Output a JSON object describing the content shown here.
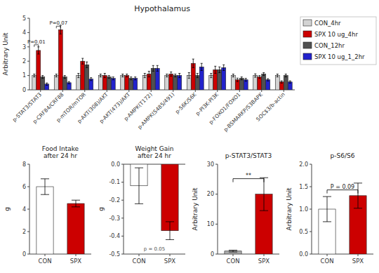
{
  "chart_data": [
    {
      "type": "bar",
      "title": "Hypothalamus",
      "ylabel": "Arbitrary Unit",
      "categories": [
        "p-STAT3/STAT3",
        "p-CRF84/CRF88",
        "p-mTOR/mTOR",
        "p-AKT(308)/AKT",
        "p-AKT(473)/AKT",
        "p-AMPK(T172)",
        "p-AMPK(S485/491)",
        "p-S6K/S6K",
        "p-PI3K-PI3K",
        "p-FOXO1/FOXO1",
        "p-BSMARKP/S3BAPK",
        "SOC$3/b-actin"
      ],
      "series": [
        {
          "name": "CON_4hr",
          "color": "#d3d3d3",
          "values": [
            1.0,
            1.0,
            1.0,
            1.0,
            1.0,
            1.0,
            1.0,
            1.0,
            1.0,
            1.0,
            1.0,
            1.0
          ],
          "errors": [
            0.1,
            0.1,
            0.15,
            0.1,
            0.1,
            0.15,
            0.1,
            0.2,
            0.15,
            0.1,
            0.12,
            0.1
          ]
        },
        {
          "name": "SPX 10 ug_4hr",
          "color": "#cc0000",
          "values": [
            2.75,
            4.2,
            2.0,
            1.0,
            1.0,
            1.1,
            1.1,
            1.85,
            1.4,
            0.7,
            0.9,
            0.55
          ],
          "errors": [
            0.25,
            0.3,
            0.2,
            0.15,
            0.1,
            0.2,
            0.15,
            0.3,
            0.25,
            0.12,
            0.1,
            0.08
          ]
        },
        {
          "name": "CON_12hr",
          "color": "#505050",
          "values": [
            0.9,
            0.9,
            1.75,
            0.9,
            0.8,
            1.5,
            1.0,
            1.0,
            1.4,
            0.8,
            1.1,
            1.0
          ],
          "errors": [
            0.1,
            0.1,
            0.2,
            0.1,
            0.1,
            0.2,
            0.1,
            0.15,
            0.2,
            0.1,
            0.1,
            0.1
          ]
        },
        {
          "name": "SPX 10 ug_1_2hr",
          "color": "#2222cc",
          "values": [
            0.4,
            0.5,
            0.75,
            0.8,
            0.8,
            1.5,
            1.0,
            1.6,
            1.55,
            0.7,
            0.7,
            0.55
          ],
          "errors": [
            0.08,
            0.08,
            0.1,
            0.1,
            0.1,
            0.2,
            0.15,
            0.25,
            0.2,
            0.1,
            0.08,
            0.08
          ]
        }
      ],
      "ylim": [
        0,
        5
      ],
      "yticks": [
        0,
        1,
        2,
        3,
        4,
        5
      ],
      "legend": "right",
      "annotations": [
        {
          "text": "P=0.01",
          "category": "p-STAT3/STAT3",
          "between": [
            "CON_4hr",
            "SPX 10 ug_4hr"
          ],
          "y": 3.0
        },
        {
          "text": "P=0.07",
          "category": "p-CRF84/CRF88",
          "between": [
            "CON_4hr",
            "SPX 10 ug_4hr"
          ],
          "y": 4.3
        }
      ]
    },
    {
      "type": "bar",
      "title": "Food Intake\nafter 24 hr",
      "ylabel": "g",
      "categories": [
        "CON",
        "SPX"
      ],
      "values": [
        6.0,
        4.5
      ],
      "errors": [
        0.7,
        0.3
      ],
      "colors": [
        "#ffffff",
        "#cc0000"
      ],
      "ylim": [
        0,
        8
      ],
      "yticks": [
        0,
        2,
        4,
        6,
        8
      ]
    },
    {
      "type": "bar",
      "title": "Weight Gain\nafter 24 hr",
      "ylabel": "g",
      "categories": [
        "CON",
        "SPX"
      ],
      "values": [
        -0.12,
        -0.37
      ],
      "errors": [
        0.1,
        0.05
      ],
      "colors": [
        "#ffffff",
        "#cc0000"
      ],
      "ylim": [
        -0.5,
        0.0
      ],
      "yticks": [
        -0.5,
        -0.4,
        -0.3,
        -0.2,
        -0.1,
        {
          "value": 0.0,
          "label": "0.0"
        }
      ],
      "annotations": [
        {
          "text": "p = 0.05",
          "y": -0.48
        }
      ]
    },
    {
      "type": "bar",
      "title": "p-STAT3/STAT3",
      "ylabel": "Arbitrary Unit",
      "categories": [
        "CON",
        "SPX"
      ],
      "values": [
        1.0,
        20.0
      ],
      "errors": [
        0.3,
        5.5
      ],
      "colors": [
        "#aaaaaa",
        "#cc0000"
      ],
      "ylim": [
        0,
        30
      ],
      "yticks": [
        0,
        10,
        20,
        30
      ],
      "annotations": [
        {
          "text": "**",
          "between": [
            "CON",
            "SPX"
          ],
          "y": 24
        }
      ]
    },
    {
      "type": "bar",
      "title": "p-S6/S6",
      "ylabel": "Arbitrary Unit",
      "categories": [
        "CON",
        "SPX"
      ],
      "values": [
        1.0,
        1.3
      ],
      "errors": [
        0.28,
        0.28
      ],
      "colors": [
        "#ffffff",
        "#cc0000"
      ],
      "ylim": [
        0,
        2.0
      ],
      "yticks": [
        {
          "value": 0,
          "label": "0.0"
        },
        0.5,
        {
          "value": 1,
          "label": "1.0"
        },
        1.5,
        {
          "value": 2,
          "label": "2.0"
        }
      ],
      "annotations": [
        {
          "text": "P = 0.09",
          "between": [
            "CON",
            "SPX"
          ],
          "y": 1.35
        }
      ]
    }
  ]
}
